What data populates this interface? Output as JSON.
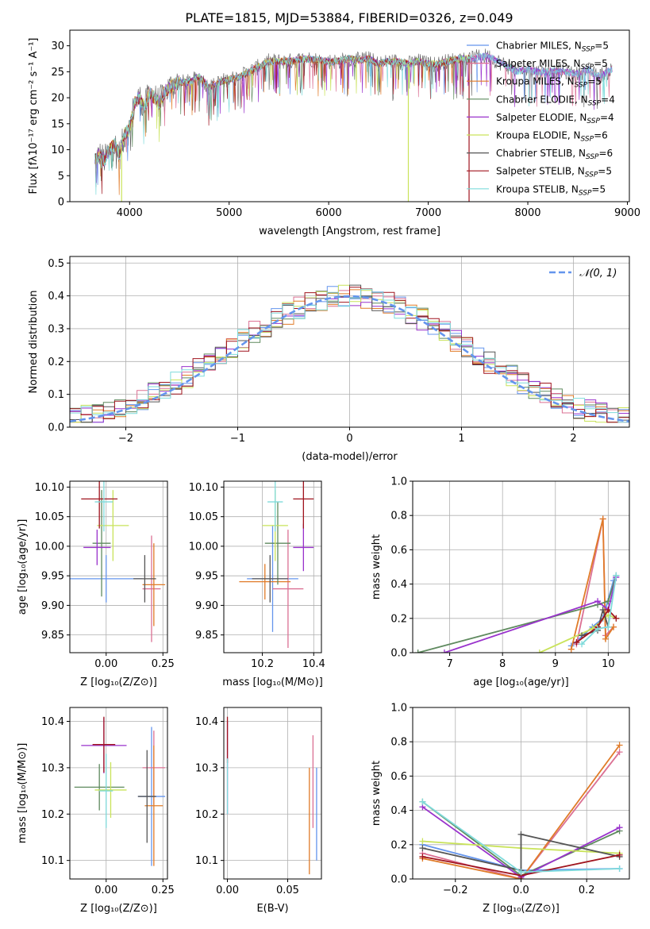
{
  "title": "PLATE=1815, MJD=53884, FIBERID=0326, z=0.049",
  "colors": {
    "grid": "#b0b0b0",
    "normal": "#6495ed"
  },
  "chart_data": [
    {
      "id": "spectrum",
      "type": "line",
      "xlabel": "wavelength [Angstrom, rest frame]",
      "ylabel": "Flux [fλ10⁻¹⁷ erg cm⁻² s⁻¹ A⁻¹]",
      "xlim": [
        3400,
        9020
      ],
      "ylim": [
        0,
        33
      ],
      "xticks": [
        4000,
        5000,
        6000,
        7000,
        8000,
        9000
      ],
      "yticks": [
        0,
        5,
        10,
        15,
        20,
        25,
        30
      ],
      "grid": false,
      "legend_position": "right",
      "series": [
        {
          "name": "Chabrier MILES, N",
          "sub": "SSP",
          "suffix": "=5",
          "color": "#6495ed"
        },
        {
          "name": "Salpeter MILES, N",
          "sub": "SSP",
          "suffix": "=5",
          "color": "#db7093"
        },
        {
          "name": "Kroupa MILES, N",
          "sub": "SSP",
          "suffix": "=5",
          "color": "#e07b28"
        },
        {
          "name": "Chabrier ELODIE, N",
          "sub": "SSP",
          "suffix": "=4",
          "color": "#5f8a5f"
        },
        {
          "name": "Salpeter ELODIE, N",
          "sub": "SSP",
          "suffix": "=4",
          "color": "#9932cc"
        },
        {
          "name": "Kroupa ELODIE, N",
          "sub": "SSP",
          "suffix": "=6",
          "color": "#c9e35a"
        },
        {
          "name": "Chabrier STELIB, N",
          "sub": "SSP",
          "suffix": "=6",
          "color": "#555555"
        },
        {
          "name": "Salpeter STELIB, N",
          "sub": "SSP",
          "suffix": "=5",
          "color": "#a0141e"
        },
        {
          "name": "Kroupa STELIB, N",
          "sub": "SSP",
          "suffix": "=5",
          "color": "#7fdbdb"
        }
      ],
      "continuum": [
        [
          3650,
          8
        ],
        [
          3700,
          9
        ],
        [
          3750,
          8
        ],
        [
          3800,
          10
        ],
        [
          3850,
          11
        ],
        [
          3900,
          9
        ],
        [
          3950,
          13
        ],
        [
          4000,
          14
        ],
        [
          4050,
          19
        ],
        [
          4100,
          20
        ],
        [
          4150,
          18
        ],
        [
          4200,
          21
        ],
        [
          4250,
          20
        ],
        [
          4300,
          19
        ],
        [
          4350,
          21
        ],
        [
          4400,
          22
        ],
        [
          4500,
          23
        ],
        [
          4600,
          23
        ],
        [
          4700,
          24
        ],
        [
          4800,
          22
        ],
        [
          4900,
          23
        ],
        [
          5000,
          23.5
        ],
        [
          5100,
          24
        ],
        [
          5200,
          25
        ],
        [
          5300,
          26
        ],
        [
          5400,
          27
        ],
        [
          5500,
          27
        ],
        [
          5600,
          27
        ],
        [
          5700,
          27.3
        ],
        [
          5800,
          27.5
        ],
        [
          5900,
          27.2
        ],
        [
          6000,
          27
        ],
        [
          6100,
          27
        ],
        [
          6200,
          27.5
        ],
        [
          6300,
          27.2
        ],
        [
          6400,
          27.5
        ],
        [
          6500,
          26.5
        ],
        [
          6600,
          27
        ],
        [
          6700,
          27
        ],
        [
          6800,
          26.5
        ],
        [
          6900,
          27
        ],
        [
          7000,
          26.5
        ],
        [
          7100,
          26.5
        ],
        [
          7200,
          27
        ],
        [
          7300,
          27.5
        ],
        [
          7400,
          27.5
        ],
        [
          7500,
          27.8
        ],
        [
          7600,
          28
        ],
        [
          7700,
          27
        ],
        [
          7800,
          26
        ],
        [
          7900,
          25
        ],
        [
          8000,
          25.5
        ],
        [
          8100,
          25
        ],
        [
          8200,
          25
        ],
        [
          8300,
          25.2
        ],
        [
          8400,
          24.8
        ],
        [
          8500,
          24.5
        ],
        [
          8600,
          25.5
        ],
        [
          8700,
          24
        ],
        [
          8800,
          25
        ],
        [
          8850,
          25.5
        ]
      ],
      "spikes": [
        {
          "x": 3920,
          "series": 5
        },
        {
          "x": 6800,
          "series": 5
        },
        {
          "x": 7410,
          "series": 7
        }
      ]
    },
    {
      "id": "residuals",
      "type": "line",
      "xlabel": "(data-model)/error",
      "ylabel": "Normed distribution",
      "xlim": [
        -2.5,
        2.5
      ],
      "ylim": [
        0,
        0.52
      ],
      "xticks": [
        -2,
        -1,
        0,
        1,
        2
      ],
      "yticks": [
        0.0,
        0.1,
        0.2,
        0.3,
        0.4,
        0.5
      ],
      "grid": true,
      "legend_position": "top-right",
      "normal_label": "𝒩(0, 1)",
      "bin_width": 0.1
    },
    {
      "id": "age-vs-Z",
      "type": "scatter",
      "xlabel": "Z [log₁₀(Z/Z⊙)]",
      "ylabel": "age  [log₁₀(age/yr)]",
      "xlim": [
        -0.16,
        0.27
      ],
      "ylim": [
        9.82,
        10.11
      ],
      "xticks": [
        0.0,
        0.25
      ],
      "yticks": [
        9.85,
        9.9,
        9.95,
        10.0,
        10.05,
        10.1
      ],
      "grid": true,
      "points": [
        {
          "x": 0.0,
          "y": 9.945,
          "xerr": 0.16,
          "yerr": 0.04,
          "series": 0
        },
        {
          "x": 0.2,
          "y": 9.928,
          "xerr": 0.04,
          "yerr": 0.09,
          "series": 1
        },
        {
          "x": 0.21,
          "y": 9.935,
          "xerr": 0.05,
          "yerr": 0.07,
          "series": 2
        },
        {
          "x": -0.02,
          "y": 10.005,
          "xerr": 0.04,
          "yerr": 0.09,
          "series": 3
        },
        {
          "x": -0.04,
          "y": 9.998,
          "xerr": 0.06,
          "yerr": 0.03,
          "series": 4
        },
        {
          "x": 0.03,
          "y": 10.035,
          "xerr": 0.07,
          "yerr": 0.06,
          "series": 5
        },
        {
          "x": 0.17,
          "y": 9.945,
          "xerr": 0.05,
          "yerr": 0.04,
          "series": 6
        },
        {
          "x": -0.03,
          "y": 10.08,
          "xerr": 0.08,
          "yerr": 0.05,
          "series": 7
        },
        {
          "x": -0.01,
          "y": 10.075,
          "xerr": 0.04,
          "yerr": 0.05,
          "series": 8
        }
      ]
    },
    {
      "id": "age-vs-mass",
      "type": "scatter",
      "xlabel": "mass [log₁₀(M/M⊙)]",
      "ylabel": "",
      "xlim": [
        10.05,
        10.43
      ],
      "ylim": [
        9.82,
        10.11
      ],
      "xticks": [
        10.2,
        10.4
      ],
      "yticks": [
        9.85,
        9.9,
        9.95,
        10.0,
        10.05,
        10.1
      ],
      "grid": true,
      "points": [
        {
          "x": 10.24,
          "y": 9.945,
          "xerr": 0.1,
          "yerr": 0.09,
          "series": 0
        },
        {
          "x": 10.3,
          "y": 9.928,
          "xerr": 0.06,
          "yerr": 0.1,
          "series": 1
        },
        {
          "x": 10.21,
          "y": 9.94,
          "xerr": 0.1,
          "yerr": 0.03,
          "series": 2
        },
        {
          "x": 10.26,
          "y": 10.005,
          "xerr": 0.05,
          "yerr": 0.07,
          "series": 3
        },
        {
          "x": 10.36,
          "y": 9.998,
          "xerr": 0.04,
          "yerr": 0.04,
          "series": 4
        },
        {
          "x": 10.25,
          "y": 10.035,
          "xerr": 0.05,
          "yerr": 0.06,
          "series": 5
        },
        {
          "x": 10.23,
          "y": 9.945,
          "xerr": 0.07,
          "yerr": 0.04,
          "series": 6
        },
        {
          "x": 10.36,
          "y": 10.08,
          "xerr": 0.04,
          "yerr": 0.05,
          "series": 7
        },
        {
          "x": 10.25,
          "y": 10.075,
          "xerr": 0.03,
          "yerr": 0.05,
          "series": 8
        }
      ]
    },
    {
      "id": "weight-vs-age",
      "type": "line",
      "xlabel": "age  [log₁₀(age/yr)]",
      "ylabel": "mass weight",
      "xlim": [
        6.3,
        10.4
      ],
      "ylim": [
        0,
        1
      ],
      "xticks": [
        7,
        8,
        9,
        10
      ],
      "yticks": [
        0.0,
        0.2,
        0.4,
        0.6,
        0.8,
        1.0
      ],
      "grid": true,
      "series": [
        {
          "series": 0,
          "x": [
            9.3,
            9.7,
            9.9,
            10.1
          ],
          "y": [
            0.04,
            0.15,
            0.2,
            0.42
          ]
        },
        {
          "series": 1,
          "x": [
            9.4,
            9.9,
            9.95,
            10.1
          ],
          "y": [
            0.05,
            0.78,
            0.1,
            0.15
          ]
        },
        {
          "series": 2,
          "x": [
            9.3,
            9.9,
            9.95,
            10.1
          ],
          "y": [
            0.02,
            0.78,
            0.08,
            0.15
          ]
        },
        {
          "series": 3,
          "x": [
            6.4,
            9.8,
            10.0,
            10.15
          ],
          "y": [
            0.0,
            0.28,
            0.3,
            0.45
          ]
        },
        {
          "series": 4,
          "x": [
            6.9,
            9.8,
            10.0,
            10.15
          ],
          "y": [
            0.0,
            0.3,
            0.25,
            0.44
          ]
        },
        {
          "series": 5,
          "x": [
            8.7,
            9.7,
            10.0,
            10.15
          ],
          "y": [
            0.0,
            0.14,
            0.22,
            0.2
          ]
        },
        {
          "series": 6,
          "x": [
            9.5,
            9.8,
            9.9,
            10.0
          ],
          "y": [
            0.1,
            0.13,
            0.25,
            0.15
          ]
        },
        {
          "series": 7,
          "x": [
            9.4,
            9.8,
            10.0,
            10.15
          ],
          "y": [
            0.06,
            0.15,
            0.25,
            0.2
          ]
        },
        {
          "series": 8,
          "x": [
            9.5,
            9.8,
            10.0,
            10.15
          ],
          "y": [
            0.05,
            0.14,
            0.15,
            0.45
          ]
        }
      ]
    },
    {
      "id": "mass-vs-Z",
      "type": "scatter",
      "xlabel": "Z [log₁₀(Z/Z⊙)]",
      "ylabel": "mass [log₁₀(M/M⊙)]",
      "xlim": [
        -0.16,
        0.27
      ],
      "ylim": [
        10.06,
        10.43
      ],
      "xticks": [
        0.0,
        0.25
      ],
      "yticks": [
        10.1,
        10.2,
        10.3,
        10.4
      ],
      "grid": true,
      "points": [
        {
          "x": 0.2,
          "y": 10.238,
          "xerr": 0.06,
          "yerr": 0.15,
          "series": 0
        },
        {
          "x": 0.21,
          "y": 10.3,
          "xerr": 0.05,
          "yerr": 0.08,
          "series": 1
        },
        {
          "x": 0.21,
          "y": 10.218,
          "xerr": 0.04,
          "yerr": 0.13,
          "series": 2
        },
        {
          "x": -0.03,
          "y": 10.258,
          "xerr": 0.11,
          "yerr": 0.05,
          "series": 3
        },
        {
          "x": -0.01,
          "y": 10.348,
          "xerr": 0.1,
          "yerr": 0.06,
          "series": 4
        },
        {
          "x": 0.02,
          "y": 10.252,
          "xerr": 0.07,
          "yerr": 0.06,
          "series": 5
        },
        {
          "x": 0.18,
          "y": 10.238,
          "xerr": 0.04,
          "yerr": 0.1,
          "series": 6
        },
        {
          "x": -0.01,
          "y": 10.35,
          "xerr": 0.05,
          "yerr": 0.06,
          "series": 7
        },
        {
          "x": 0.0,
          "y": 10.25,
          "xerr": 0.03,
          "yerr": 0.08,
          "series": 8
        }
      ]
    },
    {
      "id": "mass-vs-EBV",
      "type": "scatter",
      "xlabel": "E(B-V)",
      "ylabel": "",
      "xlim": [
        -0.003,
        0.078
      ],
      "ylim": [
        10.06,
        10.43
      ],
      "xticks": [
        0.0,
        0.05
      ],
      "yticks": [
        10.1,
        10.2,
        10.3,
        10.4
      ],
      "grid": true,
      "points": [
        {
          "x": 0.074,
          "y": 10.2,
          "xerr": 0,
          "yerr": 0.1,
          "series": 0
        },
        {
          "x": 0.071,
          "y": 10.27,
          "xerr": 0,
          "yerr": 0.1,
          "series": 1
        },
        {
          "x": 0.068,
          "y": 10.185,
          "xerr": 0,
          "yerr": 0.115,
          "series": 2
        },
        {
          "x": 0.0,
          "y": 10.3,
          "xerr": 0,
          "yerr": 0.1,
          "series": 4
        },
        {
          "x": 0.0,
          "y": 10.36,
          "xerr": 0,
          "yerr": 0.05,
          "series": 7
        },
        {
          "x": 0.0,
          "y": 10.26,
          "xerr": 0,
          "yerr": 0.06,
          "series": 8
        }
      ]
    },
    {
      "id": "weight-vs-Z",
      "type": "line",
      "xlabel": "Z [log₁₀(Z/Z⊙)]",
      "ylabel": "mass weight",
      "xlim": [
        -0.33,
        0.33
      ],
      "ylim": [
        0,
        1
      ],
      "xticks": [
        -0.2,
        0.0,
        0.2
      ],
      "yticks": [
        0.0,
        0.2,
        0.4,
        0.6,
        0.8,
        1.0
      ],
      "grid": true,
      "series": [
        {
          "series": 0,
          "x": [
            -0.3,
            0.0,
            0.3
          ],
          "y": [
            0.2,
            0.05,
            0.06
          ]
        },
        {
          "series": 1,
          "x": [
            -0.3,
            0.0,
            0.3
          ],
          "y": [
            0.15,
            0.0,
            0.74
          ]
        },
        {
          "series": 2,
          "x": [
            -0.3,
            0.0,
            0.3
          ],
          "y": [
            0.12,
            0.0,
            0.78
          ]
        },
        {
          "series": 3,
          "x": [
            -0.3,
            0.0,
            0.3
          ],
          "y": [
            0.45,
            0.02,
            0.28
          ]
        },
        {
          "series": 4,
          "x": [
            -0.3,
            0.0,
            0.3
          ],
          "y": [
            0.42,
            0.01,
            0.3
          ]
        },
        {
          "series": 5,
          "x": [
            -0.3,
            0.0,
            0.3
          ],
          "y": [
            0.22,
            0.18,
            0.15
          ]
        },
        {
          "series": 6,
          "x": [
            -0.3,
            0.0,
            0.0,
            0.3
          ],
          "y": [
            0.18,
            0.05,
            0.26,
            0.13
          ]
        },
        {
          "series": 7,
          "x": [
            -0.3,
            0.0,
            0.3
          ],
          "y": [
            0.13,
            0.02,
            0.14
          ]
        },
        {
          "series": 8,
          "x": [
            -0.3,
            0.0,
            0.3
          ],
          "y": [
            0.45,
            0.04,
            0.06
          ]
        }
      ]
    }
  ]
}
